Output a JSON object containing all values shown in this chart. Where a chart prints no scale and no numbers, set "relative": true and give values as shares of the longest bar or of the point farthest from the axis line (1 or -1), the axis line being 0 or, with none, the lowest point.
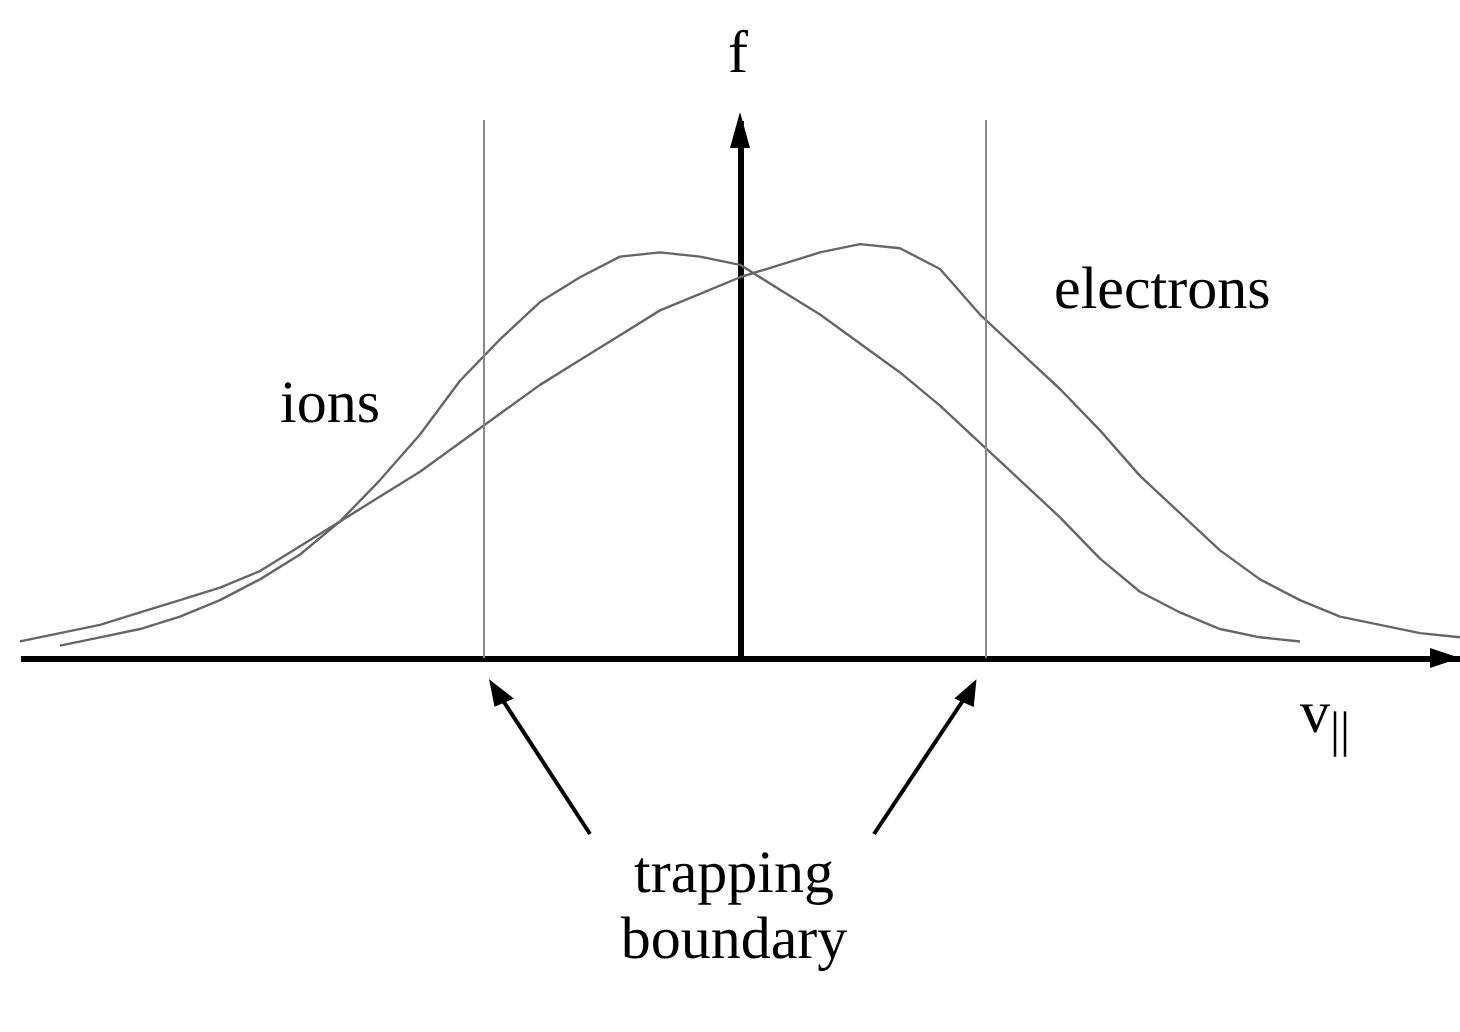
{
  "chart_data": {
    "type": "line",
    "relative": true,
    "xlabel": "v$_{||}$",
    "ylabel": "f",
    "categories": [
      null,
      null,
      null,
      null,
      null,
      null,
      null,
      null,
      null,
      null,
      null,
      null,
      null,
      null,
      null,
      null,
      null,
      null,
      null,
      null,
      null,
      null,
      null,
      null,
      null,
      null,
      null,
      null,
      null,
      null,
      null,
      null,
      null,
      null,
      null,
      null,
      null
    ],
    "series": [
      {
        "name": "ions",
        "color": "#666666",
        "values": [
          null,
          0.03,
          0.05,
          0.07,
          0.1,
          0.14,
          0.19,
          0.25,
          0.33,
          0.43,
          0.54,
          0.67,
          0.77,
          0.86,
          0.92,
          0.97,
          0.98,
          0.97,
          0.95,
          0.89,
          0.83,
          0.76,
          0.69,
          0.61,
          0.52,
          0.43,
          0.34,
          0.24,
          0.16,
          0.11,
          0.07,
          0.05,
          0.04,
          null,
          null,
          null,
          null
        ]
      },
      {
        "name": "electrons",
        "color": "#666666",
        "values": [
          0.04,
          0.06,
          0.08,
          0.11,
          0.14,
          0.17,
          0.21,
          0.27,
          0.33,
          0.39,
          0.45,
          0.52,
          0.59,
          0.66,
          0.72,
          0.78,
          0.84,
          0.88,
          0.92,
          0.95,
          0.98,
          1.0,
          0.99,
          0.94,
          0.83,
          0.74,
          0.65,
          0.55,
          0.44,
          0.35,
          0.26,
          0.19,
          0.14,
          0.1,
          0.08,
          0.06,
          0.05
        ]
      }
    ],
    "annotations": [
      "trapping boundary"
    ]
  }
}
